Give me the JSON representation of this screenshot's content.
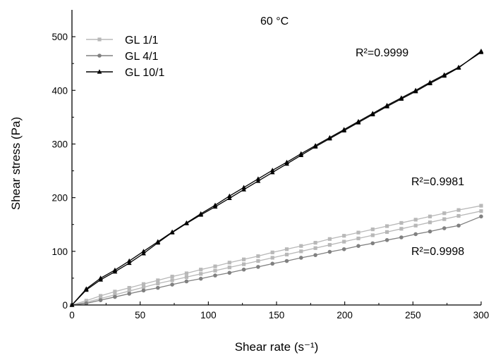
{
  "chart_data": {
    "type": "line",
    "title": "60 °C",
    "xlabel": "Shear rate (s⁻¹)",
    "ylabel": "Shear stress (Pa)",
    "xlim": [
      0,
      300
    ],
    "ylim": [
      0,
      550
    ],
    "xticks": [
      0,
      50,
      100,
      150,
      200,
      250,
      300
    ],
    "yticks": [
      0,
      100,
      200,
      300,
      400,
      500
    ],
    "legend_position": "top-left",
    "grid": false,
    "annotations": [
      "R²=0.9999",
      "R²=0.9981",
      "R²=0.9998"
    ],
    "series": [
      {
        "name": "GL 1/1",
        "color": "#b8b8b8",
        "marker": "square",
        "lines": [
          {
            "x": [
              0,
              10.5,
              21,
              31.5,
              42,
              52.5,
              63,
              73.5,
              84,
              94.5,
              105,
              115.5,
              126,
              136.5,
              147,
              157.5,
              168,
              178.5,
              189,
              199.5,
              210,
              220.5,
              231,
              241.5,
              252,
              262.5,
              273,
              283.5,
              300
            ],
            "y": [
              0,
              8,
              17,
              25,
              32,
              39,
              46,
              53,
              59,
              66,
              72,
              79,
              85,
              91,
              98,
              104,
              110,
              116,
              123,
              129,
              135,
              141,
              147,
              153,
              159,
              165,
              171,
              177,
              185
            ]
          },
          {
            "x": [
              0,
              10.5,
              21,
              31.5,
              42,
              52.5,
              63,
              73.5,
              84,
              94.5,
              105,
              115.5,
              126,
              136.5,
              147,
              157.5,
              168,
              178.5,
              189,
              199.5,
              210,
              220.5,
              231,
              241.5,
              252,
              262.5,
              273,
              283.5,
              300
            ],
            "y": [
              0,
              5,
              12,
              19,
              26,
              33,
              40,
              46,
              52,
              58,
              64,
              70,
              76,
              82,
              88,
              94,
              100,
              106,
              112,
              118,
              124,
              130,
              136,
              142,
              148,
              154,
              160,
              166,
              175
            ]
          }
        ]
      },
      {
        "name": "GL 4/1",
        "color": "#808080",
        "marker": "circle",
        "lines": [
          {
            "x": [
              0,
              10.5,
              21,
              31.5,
              42,
              52.5,
              63,
              73.5,
              84,
              94.5,
              105,
              115.5,
              126,
              136.5,
              147,
              157.5,
              168,
              178.5,
              189,
              199.5,
              210,
              220.5,
              231,
              241.5,
              252,
              262.5,
              273,
              283.5,
              300
            ],
            "y": [
              0,
              3,
              9,
              15,
              21,
              27,
              32,
              38,
              44,
              49,
              55,
              60,
              66,
              71,
              77,
              82,
              88,
              93,
              99,
              104,
              110,
              115,
              121,
              126,
              132,
              137,
              143,
              148,
              165
            ]
          }
        ]
      },
      {
        "name": "GL 10/1",
        "color": "#000000",
        "marker": "triangle",
        "lines": [
          {
            "x": [
              0,
              10.5,
              21,
              31.5,
              42,
              52.5,
              63,
              73.5,
              84,
              94.5,
              105,
              115.5,
              126,
              136.5,
              147,
              157.5,
              168,
              178.5,
              189,
              199.5,
              210,
              220.5,
              231,
              241.5,
              252,
              262.5,
              273,
              283.5,
              300
            ],
            "y": [
              0,
              30,
              50,
              65,
              82,
              100,
              118,
              136,
              153,
              170,
              186,
              203,
              219,
              235,
              251,
              266,
              282,
              297,
              312,
              327,
              342,
              357,
              372,
              386,
              400,
              415,
              429,
              443,
              471
            ]
          },
          {
            "x": [
              0,
              10.5,
              21,
              31.5,
              42,
              52.5,
              63,
              73.5,
              84,
              94.5,
              105,
              115.5,
              126,
              136.5,
              147,
              157.5,
              168,
              178.5,
              189,
              199.5,
              210,
              220.5,
              231,
              241.5,
              252,
              262.5,
              273,
              283.5,
              300
            ],
            "y": [
              0,
              28,
              47,
              62,
              78,
              96,
              116,
              135,
              152,
              168,
              183,
              199,
              215,
              231,
              247,
              263,
              279,
              295,
              310,
              325,
              340,
              355,
              370,
              384,
              398,
              413,
              427,
              442,
              473
            ]
          }
        ]
      }
    ]
  }
}
